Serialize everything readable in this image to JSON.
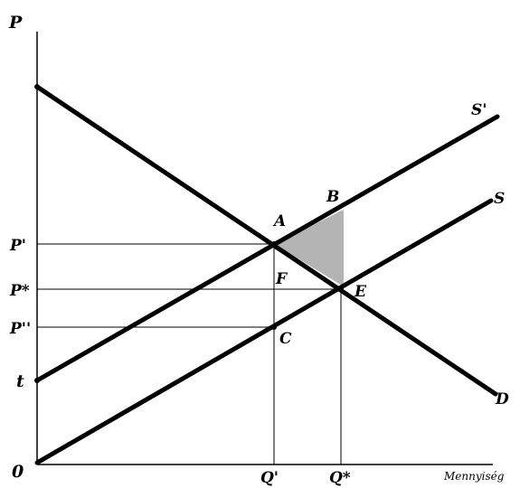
{
  "axes": {
    "y_label": "P",
    "x_label": "Mennyiség",
    "origin_label": "0"
  },
  "price_labels": {
    "p_prime": "P'",
    "p_star": "P*",
    "p_double_prime": "P''",
    "t": "t"
  },
  "quantity_labels": {
    "q_prime": "Q'",
    "q_star": "Q*"
  },
  "curve_labels": {
    "supply_shifted": "S'",
    "supply": "S",
    "demand": "D"
  },
  "point_labels": {
    "a": "A",
    "b": "B",
    "e": "E",
    "f": "F",
    "c": "C"
  },
  "colors": {
    "deadweight_area": "#b4b4b4",
    "lines": "#000000"
  }
}
